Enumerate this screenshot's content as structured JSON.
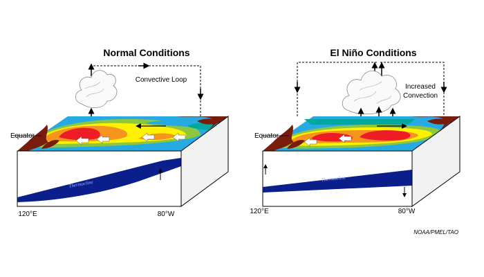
{
  "panels": {
    "normal": {
      "title": "Normal Conditions",
      "loop_label": "Convective Loop",
      "equator_label": "Equator",
      "thermocline_label": "Thermocline",
      "lon_west": "120°E",
      "lon_east": "80°W"
    },
    "elnino": {
      "title": "El Niño Conditions",
      "loop_label_line1": "Increased",
      "loop_label_line2": "Convection",
      "equator_label": "Equator",
      "thermocline_label": "Thermocline",
      "lon_west": "120°E",
      "lon_east": "80°W"
    }
  },
  "credit": "NOAA/PMEL/TAO",
  "colors": {
    "ocean_deep": "#0a1e8c",
    "land": "#7a1c0c",
    "warm": "#ee1c24",
    "orange": "#f7941d",
    "yellow": "#fff200",
    "green": "#8dc63f",
    "cyan": "#27aae1",
    "teal": "#00a99d"
  }
}
